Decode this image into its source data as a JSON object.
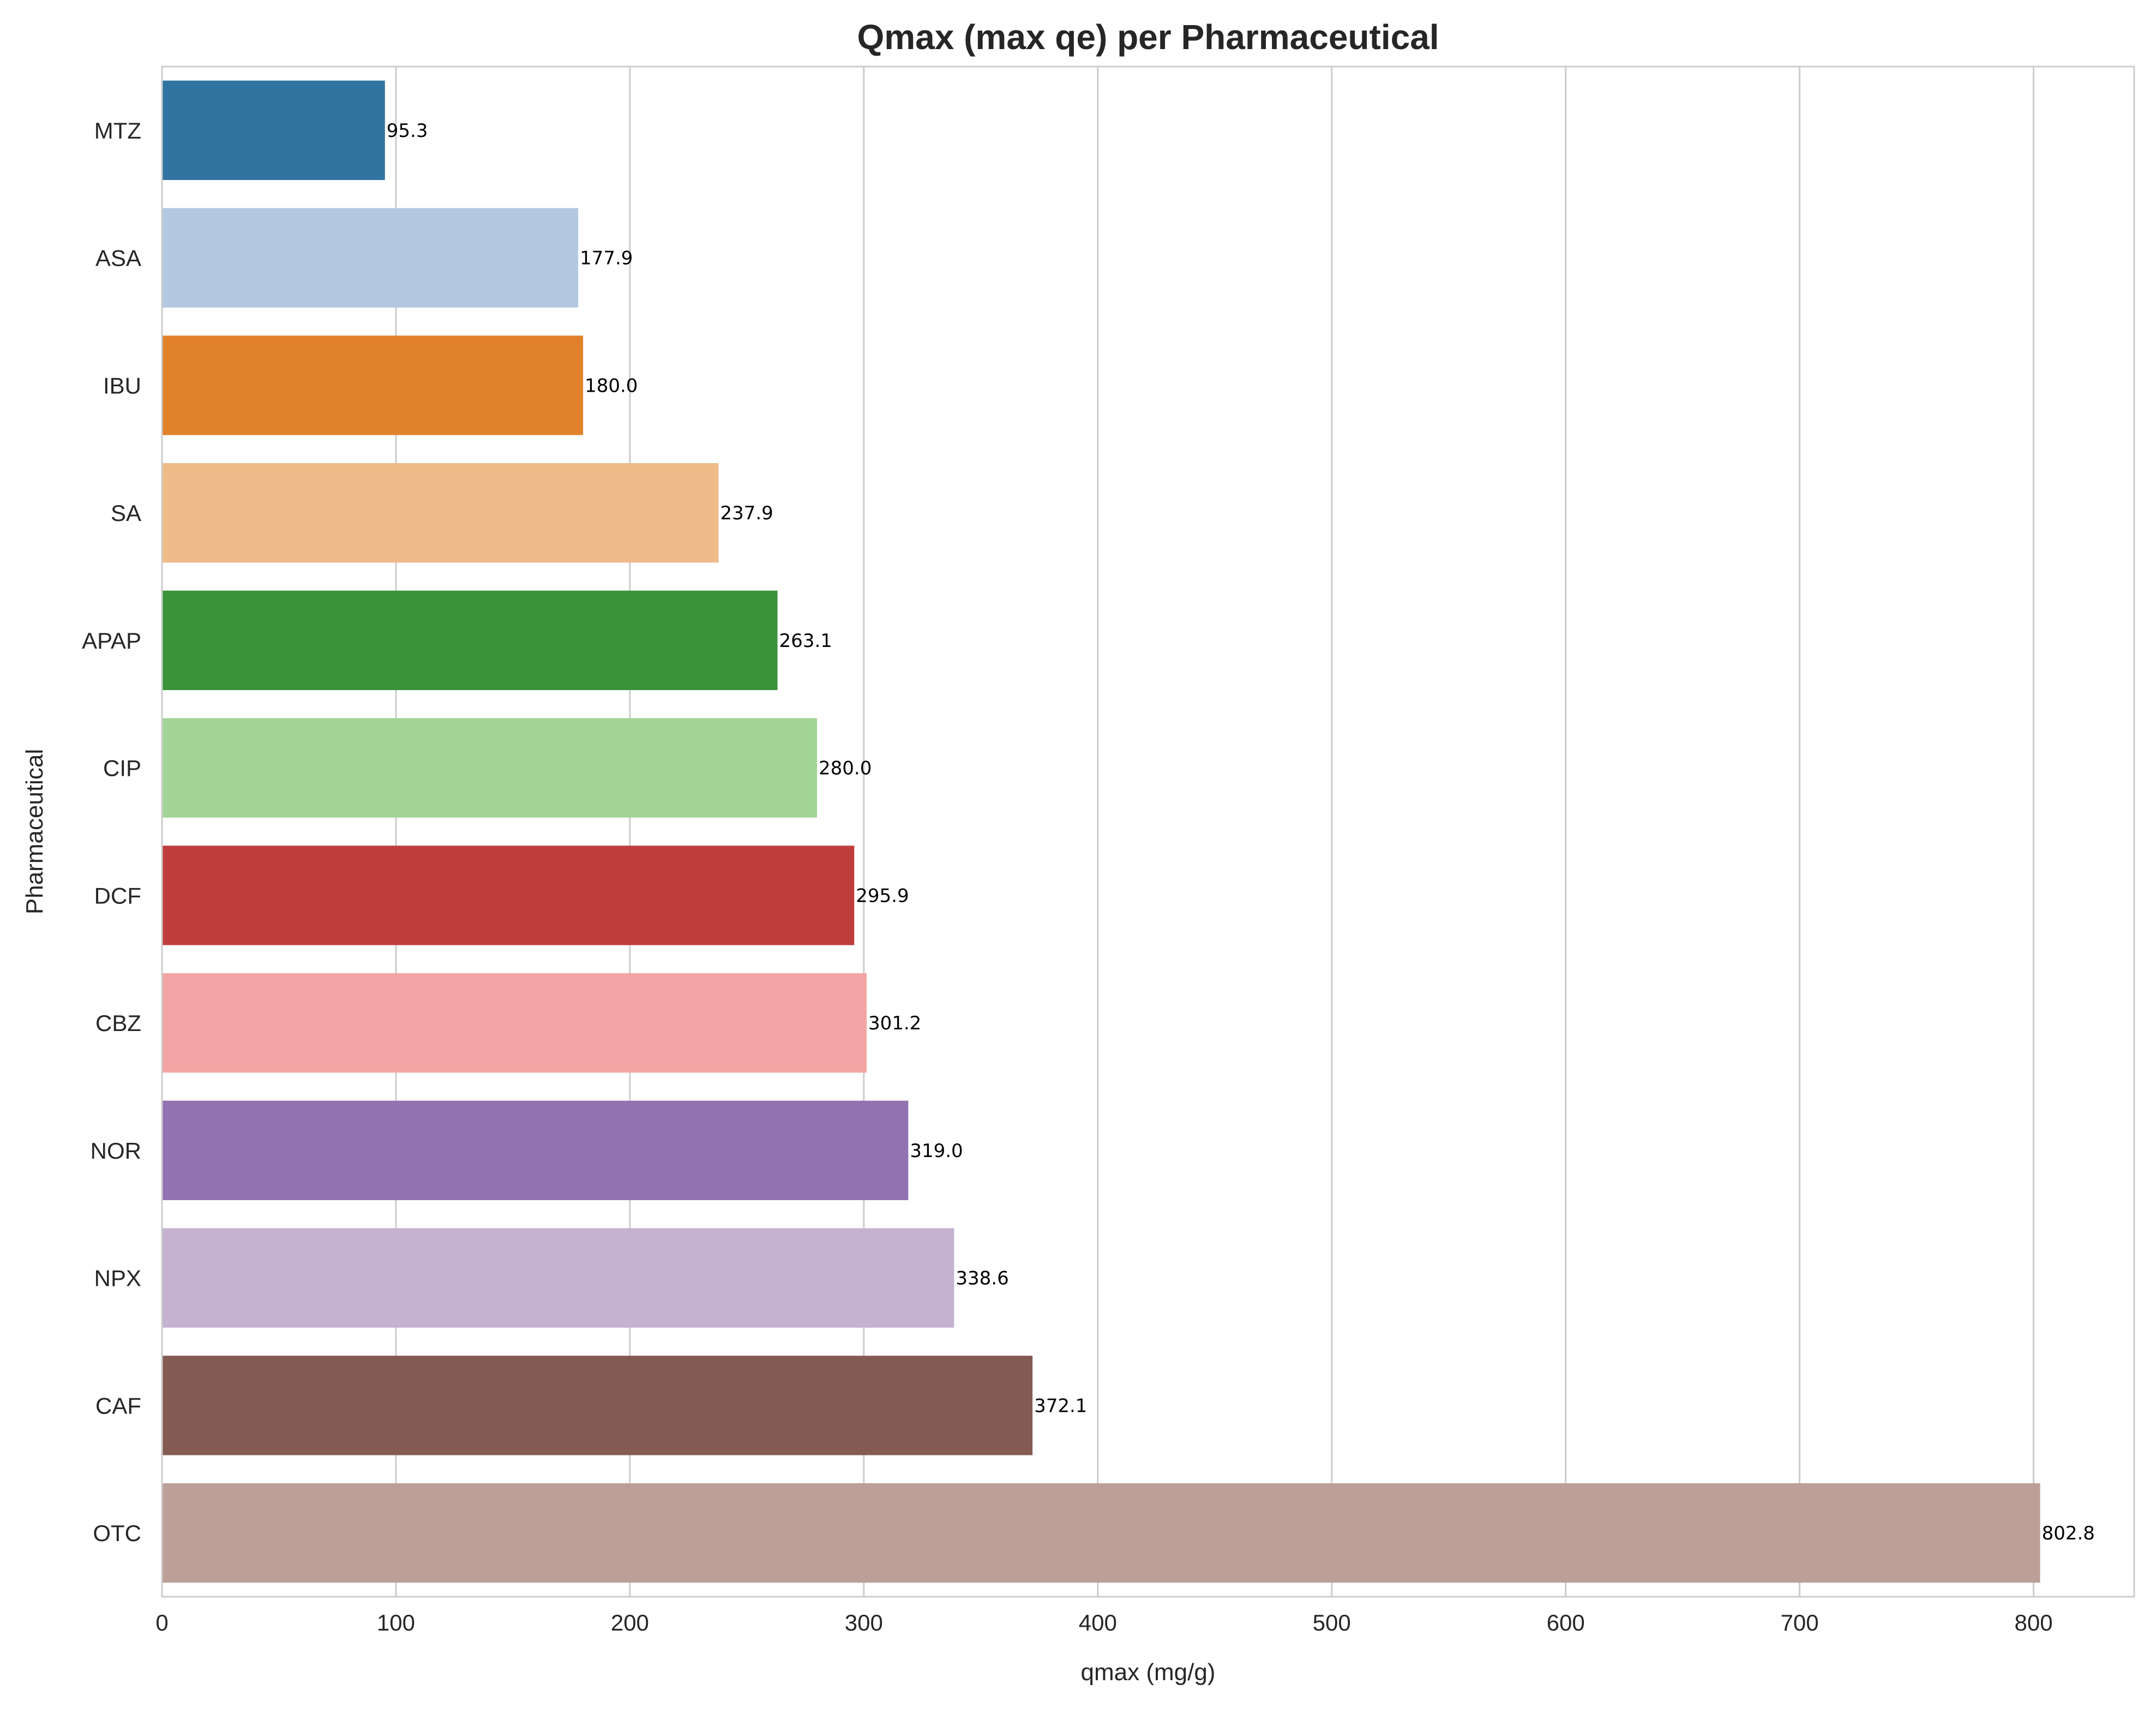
{
  "chart_data": {
    "type": "bar",
    "orientation": "horizontal",
    "title": "Qmax (max qe) per Pharmaceutical",
    "xlabel": "qmax (mg/g)",
    "ylabel": "Pharmaceutical",
    "xlim": [
      0,
      843
    ],
    "xticks": [
      0,
      100,
      200,
      300,
      400,
      500,
      600,
      700,
      800
    ],
    "grid": "vertical",
    "categories": [
      "MTZ",
      "ASA",
      "IBU",
      "SA",
      "APAP",
      "CIP",
      "DCF",
      "CBZ",
      "NOR",
      "NPX",
      "CAF",
      "OTC"
    ],
    "values": [
      95.3,
      177.9,
      180.0,
      237.9,
      263.1,
      280.0,
      295.9,
      301.2,
      319.0,
      338.6,
      372.1,
      802.8
    ],
    "value_labels": [
      "95.3",
      "177.9",
      "180.0",
      "237.9",
      "263.1",
      "280.0",
      "295.9",
      "301.2",
      "319.0",
      "338.6",
      "372.1",
      "802.8"
    ],
    "colors": [
      "#3274a1",
      "#b3c8e1",
      "#e1812c",
      "#efbb89",
      "#3a923a",
      "#a1d496",
      "#c03d3e",
      "#f2a5a4",
      "#9372b2",
      "#c4b2d0",
      "#845b53",
      "#bc9f98"
    ]
  }
}
